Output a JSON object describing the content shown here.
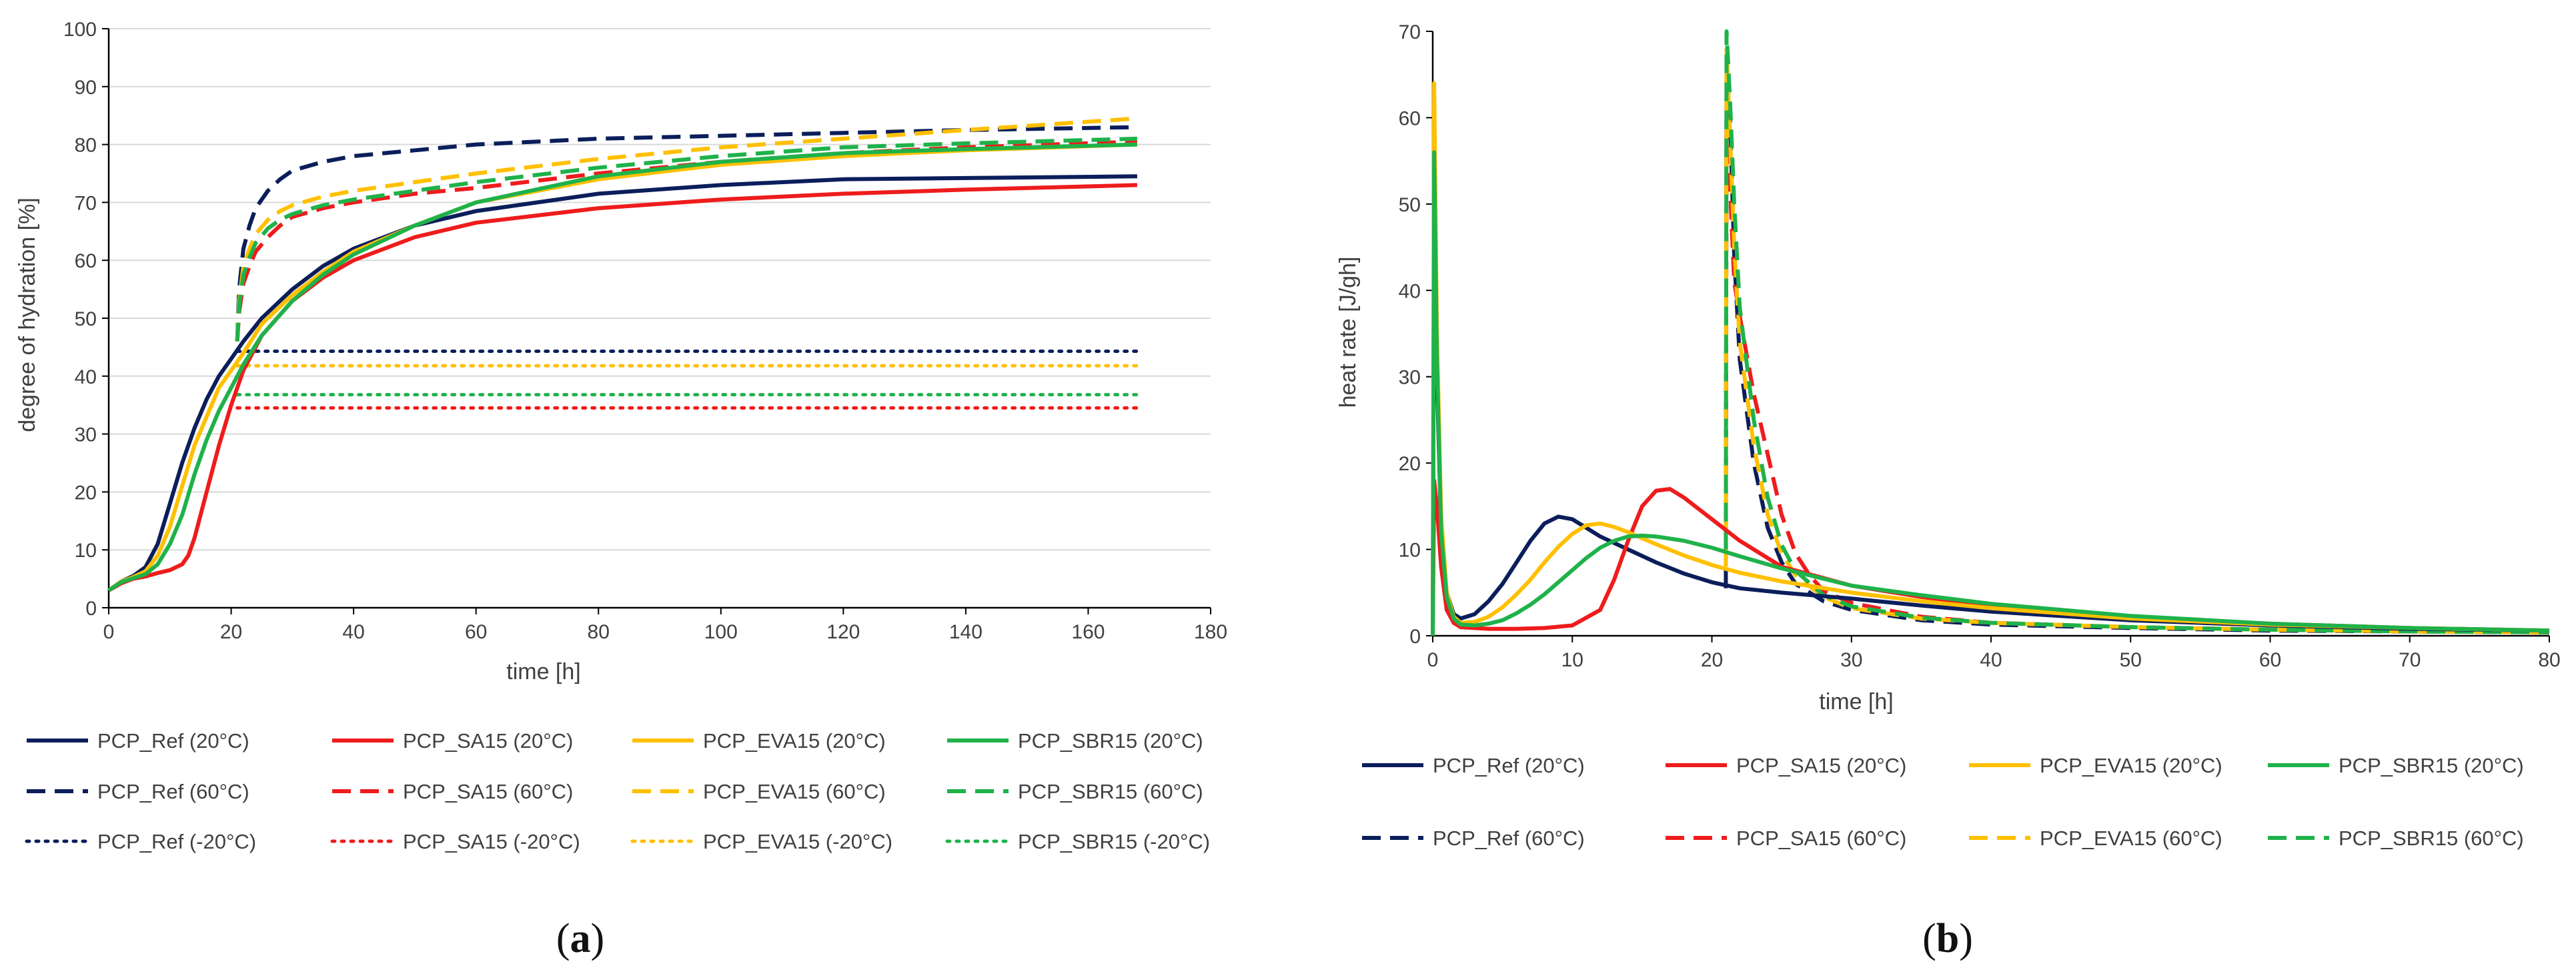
{
  "series_styles": {
    "PCP_Ref": "#0b1e5b",
    "PCP_SA15": "#ee1c1c",
    "PCP_EVA15": "#ffc000",
    "PCP_SBR15": "#1fb24a"
  },
  "chart_data": [
    {
      "panel": "(a)",
      "panel_prefix": "(",
      "panel_letter": "a",
      "panel_suffix": ")",
      "type": "line",
      "xlabel": "time [h]",
      "ylabel": "degree of hydration [%]",
      "xlim": [
        0,
        180
      ],
      "ylim": [
        0,
        100
      ],
      "xticks": [
        0,
        20,
        40,
        60,
        80,
        100,
        120,
        140,
        160,
        180
      ],
      "yticks": [
        0,
        10,
        20,
        30,
        40,
        50,
        60,
        70,
        80,
        90,
        100
      ],
      "grid": "horizontal",
      "legend": "bottom",
      "series": [
        {
          "name": "PCP_Ref (20°C)",
          "material": "PCP_Ref",
          "dash": "solid",
          "x": [
            0,
            2,
            4,
            6,
            8,
            10,
            12,
            14,
            16,
            18,
            20,
            22,
            25,
            30,
            35,
            40,
            50,
            60,
            80,
            100,
            120,
            140,
            168
          ],
          "y": [
            3,
            4.5,
            5.5,
            7,
            11,
            18,
            25,
            31,
            36,
            40,
            43,
            46,
            50,
            55,
            59,
            62,
            66,
            68.5,
            71.5,
            73,
            74,
            74.2,
            74.5
          ]
        },
        {
          "name": "PCP_SA15 (20°C)",
          "material": "PCP_SA15",
          "dash": "solid",
          "x": [
            0,
            2,
            4,
            6,
            8,
            10,
            12,
            13,
            14,
            16,
            18,
            20,
            22,
            25,
            30,
            35,
            40,
            50,
            60,
            80,
            100,
            120,
            140,
            168
          ],
          "y": [
            3,
            4.2,
            5,
            5.4,
            6,
            6.5,
            7.5,
            9,
            12,
            20,
            28,
            35,
            41,
            47,
            53,
            57,
            60,
            64,
            66.5,
            69,
            70.5,
            71.5,
            72.2,
            73
          ]
        },
        {
          "name": "PCP_EVA15 (20°C)",
          "material": "PCP_EVA15",
          "dash": "solid",
          "x": [
            0,
            2,
            4,
            6,
            8,
            10,
            12,
            14,
            16,
            18,
            20,
            22,
            25,
            30,
            35,
            40,
            50,
            60,
            80,
            100,
            120,
            140,
            168
          ],
          "y": [
            3,
            4.5,
            5.3,
            6.3,
            9,
            14,
            21,
            28,
            33,
            38,
            41,
            44,
            49,
            54,
            58,
            61.5,
            66,
            70,
            74,
            76.5,
            78,
            79,
            80
          ]
        },
        {
          "name": "PCP_SBR15 (20°C)",
          "material": "PCP_SBR15",
          "dash": "solid",
          "x": [
            0,
            2,
            4,
            6,
            8,
            10,
            12,
            14,
            16,
            18,
            20,
            22,
            25,
            30,
            35,
            40,
            50,
            60,
            80,
            100,
            120,
            140,
            168
          ],
          "y": [
            3,
            4.4,
            5.1,
            5.8,
            7.5,
            11,
            16,
            23,
            29,
            34,
            38,
            42,
            47,
            53,
            57.5,
            61,
            66,
            70,
            74.5,
            77,
            78.5,
            79.2,
            80
          ]
        },
        {
          "name": "PCP_Ref (60°C)",
          "material": "PCP_Ref",
          "dash": "dashed",
          "x": [
            21,
            21.3,
            22,
            23,
            24,
            26,
            28,
            30,
            35,
            40,
            50,
            60,
            80,
            100,
            120,
            140,
            168
          ],
          "y": [
            46,
            55,
            62,
            66,
            69,
            72,
            74,
            75.5,
            77,
            78,
            79,
            80,
            81,
            81.5,
            82,
            82.5,
            83
          ]
        },
        {
          "name": "PCP_SA15 (60°C)",
          "material": "PCP_SA15",
          "dash": "dashed",
          "x": [
            21,
            21.3,
            22,
            23,
            24,
            26,
            28,
            30,
            35,
            40,
            50,
            60,
            80,
            100,
            120,
            140,
            168
          ],
          "y": [
            46,
            51,
            56,
            59,
            61.5,
            64,
            66,
            67.5,
            69,
            70,
            71.5,
            72.5,
            75,
            77,
            78.5,
            79.5,
            80.5
          ]
        },
        {
          "name": "PCP_EVA15 (60°C)",
          "material": "PCP_EVA15",
          "dash": "dashed",
          "x": [
            21,
            21.3,
            22,
            23,
            24,
            26,
            28,
            30,
            35,
            40,
            50,
            60,
            80,
            100,
            120,
            140,
            168
          ],
          "y": [
            46,
            53,
            59,
            62,
            64.5,
            67,
            68.5,
            69.5,
            71,
            72,
            73.5,
            75,
            77.5,
            79.5,
            81,
            82.5,
            84.5
          ]
        },
        {
          "name": "PCP_SBR15 (60°C)",
          "material": "PCP_SBR15",
          "dash": "dashed",
          "x": [
            21,
            21.3,
            22,
            23,
            24,
            26,
            28,
            30,
            35,
            40,
            50,
            60,
            80,
            100,
            120,
            140,
            168
          ],
          "y": [
            46,
            52,
            57.5,
            60.5,
            63,
            65.5,
            67,
            68,
            69.5,
            70.5,
            72,
            73.5,
            76,
            78,
            79.5,
            80.2,
            81
          ]
        },
        {
          "name": "PCP_Ref (-20°C)",
          "material": "PCP_Ref",
          "dash": "dotted",
          "x": [
            21,
            168
          ],
          "y": [
            44.3,
            44.3
          ]
        },
        {
          "name": "PCP_SA15 (-20°C)",
          "material": "PCP_SA15",
          "dash": "dotted",
          "x": [
            21,
            168
          ],
          "y": [
            34.5,
            34.5
          ]
        },
        {
          "name": "PCP_EVA15 (-20°C)",
          "material": "PCP_EVA15",
          "dash": "dotted",
          "x": [
            21,
            168
          ],
          "y": [
            41.8,
            41.8
          ]
        },
        {
          "name": "PCP_SBR15 (-20°C)",
          "material": "PCP_SBR15",
          "dash": "dotted",
          "x": [
            21,
            168
          ],
          "y": [
            36.8,
            36.8
          ]
        }
      ]
    },
    {
      "panel": "(b)",
      "panel_prefix": "(",
      "panel_letter": "b",
      "panel_suffix": ")",
      "type": "line",
      "xlabel": "time [h]",
      "ylabel": "heat rate [J/gh]",
      "xlim": [
        0,
        80
      ],
      "ylim": [
        0,
        70
      ],
      "xticks": [
        0,
        10,
        20,
        30,
        40,
        50,
        60,
        70,
        80
      ],
      "yticks": [
        0,
        10,
        20,
        30,
        40,
        50,
        60,
        70
      ],
      "grid": "none",
      "legend": "bottom",
      "series": [
        {
          "name": "PCP_Ref (20°C)",
          "material": "PCP_Ref",
          "dash": "solid",
          "x": [
            0,
            0.1,
            0.3,
            0.6,
            1,
            1.5,
            2,
            3,
            4,
            5,
            6,
            7,
            8,
            9,
            10,
            11,
            12,
            14,
            16,
            18,
            20,
            22,
            25,
            30,
            35,
            40,
            50,
            60,
            70,
            80
          ],
          "y": [
            0,
            50,
            30,
            12,
            5,
            2.5,
            2,
            2.5,
            4,
            6,
            8.5,
            11,
            13,
            13.8,
            13.5,
            12.5,
            11.5,
            10,
            8.5,
            7.2,
            6.2,
            5.5,
            5,
            4.3,
            3.5,
            2.8,
            1.8,
            1.2,
            0.8,
            0.6
          ]
        },
        {
          "name": "PCP_SA15 (20°C)",
          "material": "PCP_SA15",
          "dash": "solid",
          "x": [
            0,
            0.1,
            0.3,
            0.6,
            1,
            1.5,
            2,
            4,
            6,
            8,
            10,
            12,
            13,
            14,
            15,
            16,
            17,
            18,
            20,
            22,
            25,
            30,
            35,
            40,
            50,
            60,
            70,
            80
          ],
          "y": [
            0,
            18,
            15,
            8,
            3,
            1.5,
            1,
            0.8,
            0.8,
            0.9,
            1.2,
            3,
            6.5,
            11,
            15,
            16.8,
            17,
            16,
            13.5,
            11,
            8,
            5.8,
            4.5,
            3.5,
            2.2,
            1.4,
            0.9,
            0.6
          ]
        },
        {
          "name": "PCP_EVA15 (20°C)",
          "material": "PCP_EVA15",
          "dash": "solid",
          "x": [
            0,
            0.1,
            0.3,
            0.6,
            1,
            1.5,
            2,
            3,
            4,
            5,
            6,
            7,
            8,
            9,
            10,
            11,
            12,
            13,
            14,
            16,
            18,
            20,
            22,
            25,
            30,
            35,
            40,
            50,
            60,
            70,
            80
          ],
          "y": [
            0,
            64,
            35,
            14,
            5,
            2.2,
            1.5,
            1.6,
            2.2,
            3.3,
            4.8,
            6.5,
            8.5,
            10.3,
            11.8,
            12.8,
            13,
            12.6,
            12,
            10.6,
            9.3,
            8.2,
            7.3,
            6.3,
            5,
            4,
            3.2,
            2,
            1.3,
            0.9,
            0.6
          ]
        },
        {
          "name": "PCP_SBR15 (20°C)",
          "material": "PCP_SBR15",
          "dash": "solid",
          "x": [
            0,
            0.1,
            0.3,
            0.6,
            1,
            1.5,
            2,
            3,
            4,
            5,
            6,
            7,
            8,
            9,
            10,
            11,
            12,
            13,
            14,
            15,
            16,
            18,
            20,
            22,
            25,
            30,
            35,
            40,
            50,
            60,
            70,
            80
          ],
          "y": [
            0,
            56,
            32,
            12,
            4.5,
            2,
            1.3,
            1.2,
            1.4,
            1.8,
            2.6,
            3.6,
            4.8,
            6.2,
            7.6,
            9,
            10.2,
            11,
            11.5,
            11.6,
            11.5,
            11,
            10.2,
            9.2,
            7.8,
            5.8,
            4.7,
            3.7,
            2.3,
            1.4,
            0.9,
            0.6
          ]
        },
        {
          "name": "PCP_Ref (60°C)",
          "material": "PCP_Ref",
          "dash": "dashed",
          "x": [
            21,
            21.05,
            21.3,
            21.6,
            22,
            23,
            24,
            25,
            26,
            28,
            30,
            35,
            40,
            50,
            60,
            70,
            80
          ],
          "y": [
            5.5,
            66,
            60,
            44,
            32,
            20,
            12.5,
            8.5,
            6,
            4,
            3,
            1.8,
            1.3,
            0.9,
            0.6,
            0.5,
            0.4
          ]
        },
        {
          "name": "PCP_SA15 (60°C)",
          "material": "PCP_SA15",
          "dash": "dashed",
          "x": [
            21,
            21.05,
            21.3,
            21.6,
            22,
            23,
            24,
            25,
            26,
            27,
            28,
            30,
            35,
            40,
            50,
            60,
            70,
            80
          ],
          "y": [
            12,
            62,
            52,
            41,
            37,
            28,
            21,
            14,
            9.5,
            7,
            5.2,
            3.8,
            2.2,
            1.5,
            1,
            0.7,
            0.5,
            0.4
          ]
        },
        {
          "name": "PCP_EVA15 (60°C)",
          "material": "PCP_EVA15",
          "dash": "dashed",
          "x": [
            21,
            21.05,
            21.3,
            21.6,
            22,
            23,
            24,
            25,
            26,
            28,
            30,
            35,
            40,
            50,
            60,
            70,
            80
          ],
          "y": [
            8,
            68,
            58,
            45,
            34,
            22,
            14,
            9.5,
            7,
            4.5,
            3.2,
            2,
            1.5,
            1,
            0.7,
            0.5,
            0.4
          ]
        },
        {
          "name": "PCP_SBR15 (60°C)",
          "material": "PCP_SBR15",
          "dash": "dashed",
          "x": [
            21,
            21.05,
            21.3,
            21.6,
            22,
            23,
            24,
            25,
            26,
            28,
            30,
            35,
            40,
            50,
            60,
            70,
            80
          ],
          "y": [
            10,
            70,
            62,
            50,
            38,
            25,
            16,
            10.5,
            7.5,
            4.7,
            3.4,
            2.1,
            1.5,
            1,
            0.7,
            0.5,
            0.4
          ]
        }
      ]
    }
  ]
}
